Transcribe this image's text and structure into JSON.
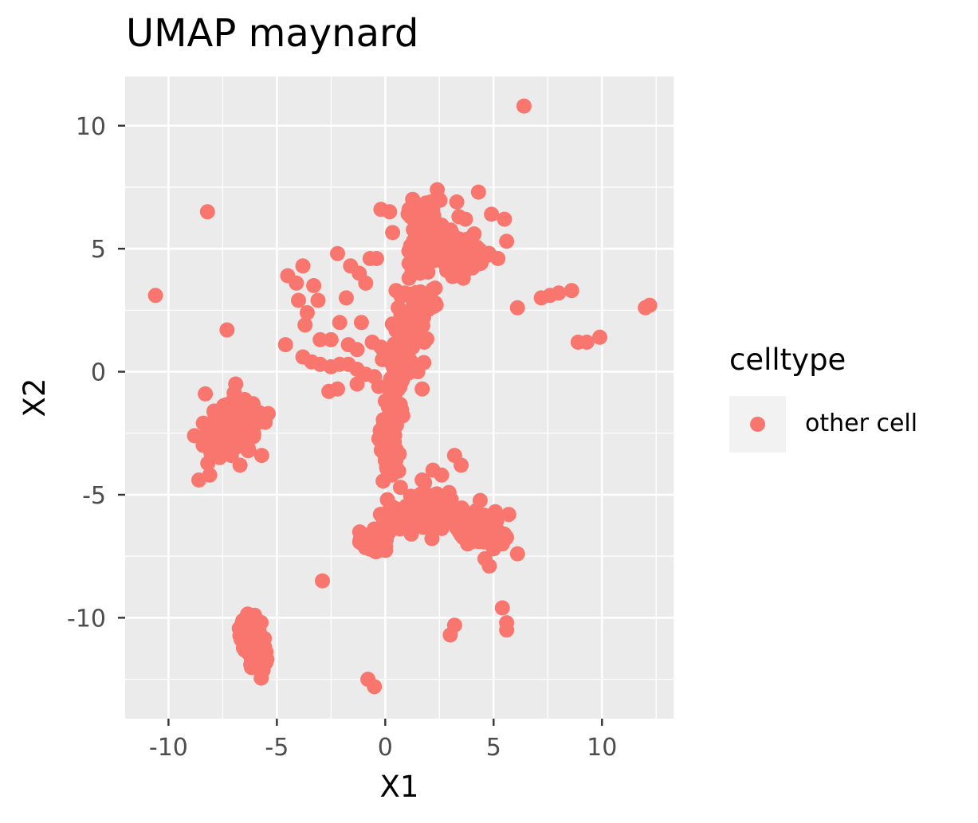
{
  "chart_data": {
    "type": "scatter",
    "title": "UMAP maynard",
    "xlabel": "X1",
    "ylabel": "X2",
    "xlim": [
      -12,
      13.3
    ],
    "ylim": [
      -14.1,
      12
    ],
    "x_ticks": [
      -10,
      -5,
      0,
      5,
      10
    ],
    "x_tick_labels": [
      "-10",
      "-5",
      "0",
      "5",
      "10"
    ],
    "y_ticks": [
      10,
      5,
      0,
      -5,
      -10
    ],
    "y_tick_labels": [
      "10",
      "5",
      "0",
      "-5",
      "-10"
    ],
    "grid": true,
    "legend": {
      "title": "celltype",
      "position": "right",
      "entries": [
        "other cell"
      ]
    },
    "colors": {
      "panel": "#ebebeb",
      "grid": "#ffffff",
      "point": "#F8766D",
      "tick_text": "#4d4d4d"
    },
    "series": [
      {
        "name": "other cell",
        "points": [
          [
            6.4,
            10.8
          ],
          [
            -8.2,
            6.5
          ],
          [
            -10.6,
            3.1
          ],
          [
            -7.3,
            1.7
          ],
          [
            -4.6,
            1.1
          ],
          [
            4.3,
            7.3
          ],
          [
            6.1,
            2.6
          ],
          [
            7.2,
            3.0
          ],
          [
            7.6,
            3.1
          ],
          [
            8.0,
            3.2
          ],
          [
            8.6,
            3.3
          ],
          [
            8.9,
            1.2
          ],
          [
            9.3,
            1.2
          ],
          [
            9.9,
            1.4
          ],
          [
            12.0,
            2.6
          ],
          [
            12.2,
            2.7
          ],
          [
            -2.9,
            -8.5
          ],
          [
            -0.8,
            -12.5
          ],
          [
            -0.5,
            -12.8
          ],
          [
            3.0,
            -10.7
          ],
          [
            3.2,
            -10.3
          ],
          [
            5.4,
            -9.6
          ],
          [
            5.6,
            -10.2
          ],
          [
            5.6,
            -10.5
          ],
          [
            6.1,
            -7.4
          ],
          [
            4.8,
            -7.9
          ],
          [
            4.6,
            -7.6
          ],
          [
            -0.2,
            6.6
          ],
          [
            0.2,
            6.5
          ],
          [
            -2.2,
            4.8
          ],
          [
            -1.6,
            4.3
          ],
          [
            -0.7,
            4.6
          ],
          [
            -0.4,
            4.6
          ],
          [
            -1.2,
            4.0
          ],
          [
            -0.9,
            3.6
          ],
          [
            -4.5,
            3.9
          ],
          [
            -4.1,
            3.6
          ],
          [
            -3.8,
            4.3
          ],
          [
            -3.3,
            3.5
          ],
          [
            -4.0,
            2.9
          ],
          [
            -3.6,
            2.4
          ],
          [
            -3.1,
            2.9
          ],
          [
            -3.7,
            1.9
          ],
          [
            -1.8,
            3.0
          ],
          [
            -2.1,
            2.0
          ],
          [
            -1.1,
            2.0
          ],
          [
            -2.5,
            1.3
          ],
          [
            -3.0,
            1.3
          ],
          [
            -3.8,
            0.6
          ],
          [
            -3.4,
            0.4
          ],
          [
            -3.0,
            0.3
          ],
          [
            -2.5,
            0.2
          ],
          [
            -2.1,
            0.3
          ],
          [
            -1.7,
            0.3
          ],
          [
            -1.3,
            0.1
          ],
          [
            -0.9,
            -0.1
          ],
          [
            -0.5,
            -0.2
          ],
          [
            -1.3,
            0.9
          ],
          [
            -1.7,
            1.1
          ],
          [
            -0.6,
            1.2
          ],
          [
            -0.2,
            1.0
          ],
          [
            -2.6,
            -0.8
          ],
          [
            -2.2,
            -0.7
          ],
          [
            -1.3,
            -0.5
          ],
          [
            -0.3,
            -0.6
          ],
          [
            1.7,
            -0.7
          ],
          [
            1.5,
            0.0
          ],
          [
            1.8,
            1.2
          ],
          [
            1.3,
            1.6
          ],
          [
            0.5,
            3.3
          ],
          [
            2.3,
            3.4
          ],
          [
            2.3,
            2.8
          ],
          [
            2.4,
            7.4
          ],
          [
            2.1,
            6.9
          ],
          [
            1.5,
            6.8
          ],
          [
            1.1,
            6.6
          ],
          [
            3.3,
            6.9
          ],
          [
            3.4,
            6.3
          ],
          [
            3.7,
            6.2
          ],
          [
            4.9,
            6.4
          ],
          [
            5.5,
            6.2
          ],
          [
            5.6,
            5.3
          ],
          [
            5.2,
            4.6
          ],
          [
            3.6,
            3.8
          ],
          [
            1.3,
            4.9
          ],
          [
            1.1,
            4.4
          ],
          [
            1.6,
            4.0
          ],
          [
            1.1,
            3.8
          ],
          [
            0.9,
            3.2
          ],
          [
            0.6,
            2.6
          ],
          [
            3.8,
            4.4
          ],
          [
            4.1,
            5.6
          ],
          [
            2.0,
            5.7
          ],
          [
            2.7,
            5.4
          ],
          [
            -6.9,
            -0.5
          ],
          [
            -6.1,
            -1.3
          ],
          [
            -5.4,
            -1.7
          ],
          [
            -5.7,
            -3.4
          ],
          [
            -6.7,
            -3.8
          ],
          [
            -7.6,
            -3.1
          ],
          [
            -8.1,
            -4.2
          ],
          [
            -8.6,
            -4.4
          ],
          [
            -8.8,
            -2.6
          ],
          [
            -8.3,
            -0.9
          ],
          [
            -7.9,
            -1.6
          ],
          [
            -6.3,
            -3.2
          ],
          [
            -7.1,
            -3.4
          ],
          [
            1.7,
            -4.4
          ],
          [
            2.2,
            -4.0
          ],
          [
            2.6,
            -4.2
          ],
          [
            3.5,
            -3.8
          ],
          [
            3.2,
            -3.4
          ],
          [
            0.7,
            -4.7
          ],
          [
            1.2,
            -6.6
          ],
          [
            0.1,
            -5.2
          ],
          [
            3.6,
            -6.4
          ],
          [
            4.3,
            -6.9
          ],
          [
            5.4,
            -6.6
          ],
          [
            5.7,
            -5.8
          ],
          [
            5.4,
            -7.0
          ],
          [
            5.0,
            -7.2
          ],
          [
            3.8,
            -7.0
          ],
          [
            4.4,
            -6.2
          ],
          [
            0.3,
            -4.2
          ],
          [
            0.0,
            -3.6
          ]
        ],
        "clusters": [
          {
            "center": [
              -0.5,
              -6.9
            ],
            "spread": [
              0.35,
              0.25
            ],
            "count": 140
          },
          {
            "center": [
              0.5,
              -0.8
            ],
            "spread": [
              0.22,
              1.2
            ],
            "count": 80
          },
          {
            "center": [
              0.2,
              -2.8
            ],
            "spread": [
              0.25,
              0.9
            ],
            "count": 45
          },
          {
            "center": [
              0.9,
              1.1
            ],
            "spread": [
              0.5,
              0.9
            ],
            "count": 45
          },
          {
            "center": [
              1.7,
              2.7
            ],
            "spread": [
              0.5,
              0.6
            ],
            "count": 35
          },
          {
            "center": [
              2.6,
              4.9
            ],
            "spread": [
              1.1,
              0.6
            ],
            "count": 90
          },
          {
            "center": [
              3.8,
              4.8
            ],
            "spread": [
              0.7,
              0.4
            ],
            "count": 40
          },
          {
            "center": [
              2.0,
              6.0
            ],
            "spread": [
              0.5,
              0.7
            ],
            "count": 30
          },
          {
            "center": [
              2.3,
              -5.6
            ],
            "spread": [
              0.9,
              0.45
            ],
            "count": 100
          },
          {
            "center": [
              4.3,
              -6.4
            ],
            "spread": [
              0.7,
              0.35
            ],
            "count": 70
          },
          {
            "center": [
              0.5,
              -6.0
            ],
            "spread": [
              0.5,
              0.4
            ],
            "count": 25
          },
          {
            "center": [
              -6.9,
              -2.2
            ],
            "spread": [
              0.6,
              0.65
            ],
            "count": 120
          },
          {
            "center": [
              -7.8,
              -2.6
            ],
            "spread": [
              0.5,
              0.5
            ],
            "count": 40
          },
          {
            "center": [
              -6.1,
              -10.8
            ],
            "spread": [
              0.25,
              0.4
            ],
            "count": 70
          },
          {
            "center": [
              -5.8,
              -11.7
            ],
            "spread": [
              0.25,
              0.35
            ],
            "count": 50
          },
          {
            "center": [
              -6.5,
              -10.5
            ],
            "spread": [
              0.2,
              0.35
            ],
            "count": 30
          }
        ]
      }
    ]
  }
}
